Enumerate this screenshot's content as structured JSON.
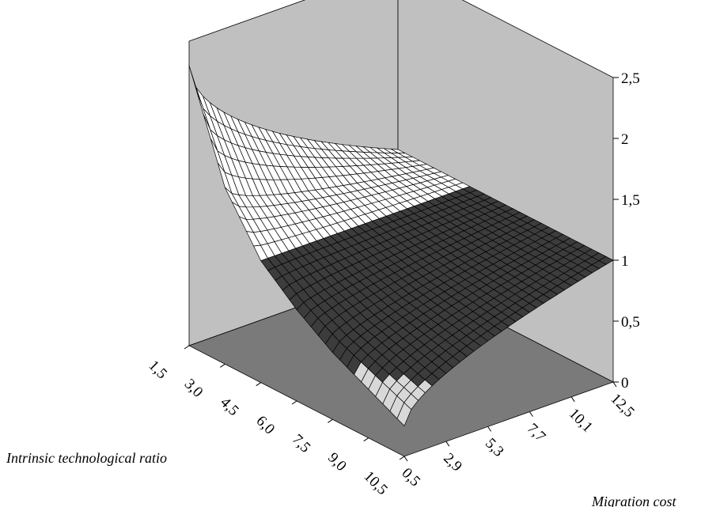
{
  "chart_data": {
    "type": "surface3d",
    "title": "",
    "xlabel": "Intrinsic technological ratio",
    "ylabel": "Migration cost",
    "zlabel": "",
    "x_ticks": [
      "1,5",
      "3,0",
      "4,5",
      "6,0",
      "7,5",
      "9,0",
      "10,5"
    ],
    "y_ticks": [
      "0,5",
      "2,9",
      "5,3",
      "7,7",
      "10,1",
      "12,5"
    ],
    "z_ticks": [
      "0",
      "0,5",
      "1",
      "1,5",
      "2",
      "2,5"
    ],
    "x_range": [
      1.5,
      10.5
    ],
    "y_range": [
      0.5,
      12.5
    ],
    "z_range": [
      0,
      2.5
    ],
    "grid": true,
    "colors": {
      "wall": "#c0c0c0",
      "floor": "#7a7a7a",
      "band_above_1": "#ffffff",
      "band_below_1": "#3c3c3c",
      "band_below_0_5": "#d8d8d8",
      "mesh": "#000000"
    },
    "surface_profile": {
      "description_keys": [
        "x",
        "z_at_low_cost",
        "z_at_high_cost"
      ],
      "x": [
        1.5,
        3.0,
        4.5,
        6.0,
        7.5,
        9.0,
        10.5
      ],
      "z_at_low_cost": [
        2.3,
        1.45,
        1.0,
        0.75,
        0.55,
        0.4,
        0.25
      ],
      "z_at_high_cost": [
        1.0,
        1.0,
        1.0,
        1.0,
        1.0,
        1.0,
        1.0
      ]
    }
  }
}
